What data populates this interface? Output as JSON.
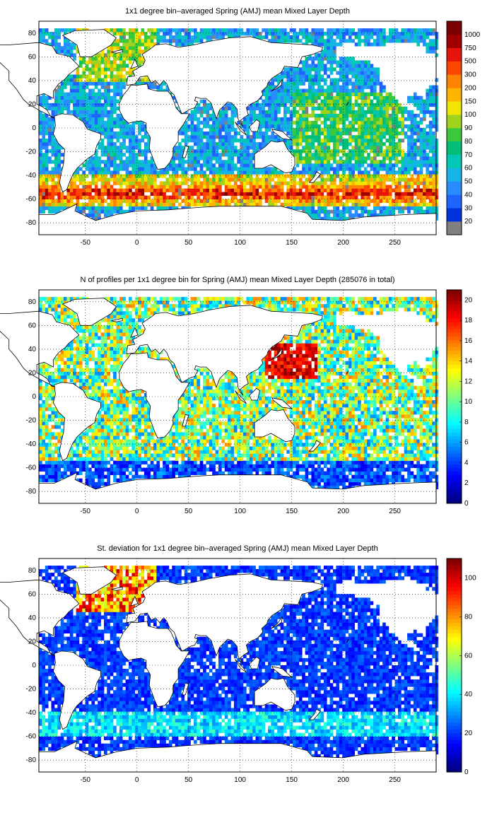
{
  "figure": {
    "panels": [
      {
        "title": "1x1 degree bin–averaged Spring (AMJ) mean Mixed Layer Depth",
        "colorbar": {
          "type": "discrete",
          "labels": [
            "20",
            "30",
            "40",
            "50",
            "60",
            "70",
            "80",
            "90",
            "100",
            "150",
            "200",
            "300",
            "500",
            "750",
            "1000"
          ],
          "colors": [
            "#808080",
            "#0032dc",
            "#1e64ff",
            "#288cff",
            "#14b4e6",
            "#00c8b4",
            "#00be78",
            "#3cc83c",
            "#a0d21e",
            "#f0e600",
            "#ffb400",
            "#ff8200",
            "#ff4600",
            "#e6140a",
            "#a00000",
            "#780000"
          ]
        }
      },
      {
        "title": "N of profiles per 1x1 degree bin for Spring (AMJ) mean Mixed Layer Depth  (285076 in total)",
        "colorbar": {
          "type": "continuous",
          "range": [
            0,
            21
          ],
          "ticks": [
            "0",
            "2",
            "4",
            "6",
            "8",
            "10",
            "12",
            "14",
            "16",
            "18",
            "20"
          ],
          "tick_values": [
            0,
            2,
            4,
            6,
            8,
            10,
            12,
            14,
            16,
            18,
            20
          ]
        }
      },
      {
        "title": "St. deviation for 1x1 degree bin–averaged Spring (AMJ) mean Mixed Layer Depth",
        "colorbar": {
          "type": "continuous",
          "range": [
            0,
            110
          ],
          "ticks": [
            "0",
            "20",
            "40",
            "60",
            "80",
            "100"
          ],
          "tick_values": [
            0,
            20,
            40,
            60,
            80,
            100
          ]
        }
      }
    ],
    "map_axes": {
      "xlim": [
        -95,
        290
      ],
      "ylim": [
        -90,
        90
      ],
      "xticks": [
        -50,
        0,
        50,
        100,
        150,
        200,
        250
      ],
      "yticks": [
        -80,
        -60,
        -40,
        -20,
        0,
        20,
        40,
        60,
        80
      ],
      "grid": "dotted"
    }
  }
}
